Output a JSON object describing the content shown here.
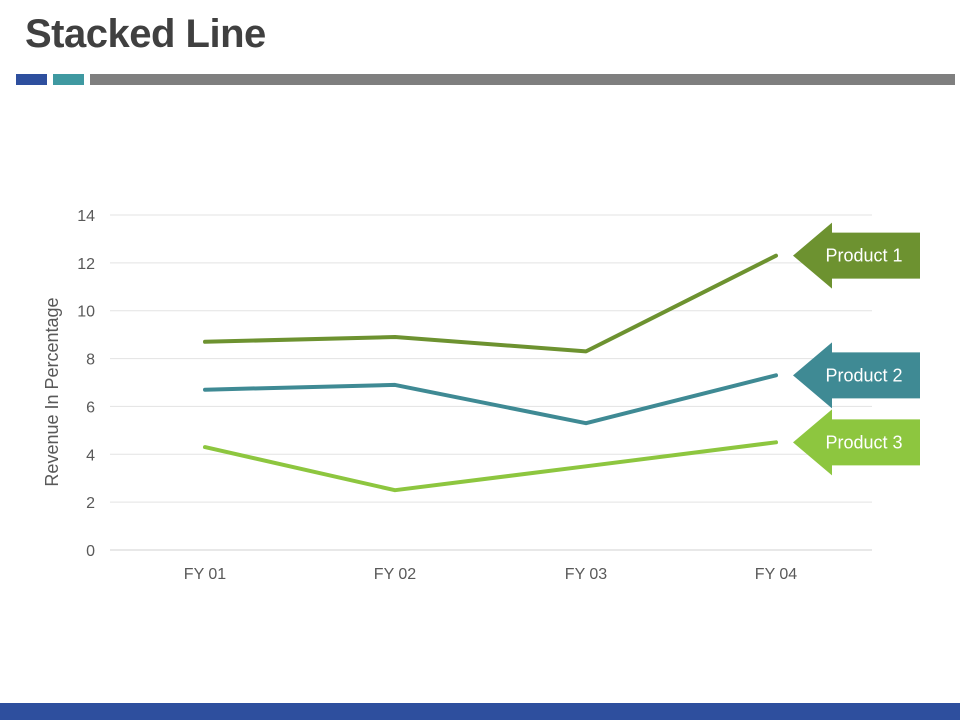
{
  "slide": {
    "title": "Stacked Line",
    "colors": {
      "accent_blue": "#2e4f9e",
      "accent_teal": "#3f99a1",
      "accent_gray": "#7f7f7f",
      "footer": "#2e4f9e"
    }
  },
  "chart_data": {
    "type": "line",
    "title": "",
    "xlabel": "",
    "ylabel": "Revenue In Percentage",
    "categories": [
      "FY 01",
      "FY 02",
      "FY 03",
      "FY 04"
    ],
    "ylim": [
      0,
      14
    ],
    "yticks": [
      0,
      2,
      4,
      6,
      8,
      10,
      12,
      14
    ],
    "grid": true,
    "legend": "callouts-right",
    "series": [
      {
        "name": "Product 1",
        "values": [
          8.7,
          8.9,
          8.3,
          12.3
        ],
        "color": "#6d9230"
      },
      {
        "name": "Product 2",
        "values": [
          6.7,
          6.9,
          5.3,
          7.3
        ],
        "color": "#3f8a94"
      },
      {
        "name": "Product 3",
        "values": [
          4.3,
          2.5,
          3.5,
          4.5
        ],
        "color": "#8dc63f"
      }
    ]
  }
}
